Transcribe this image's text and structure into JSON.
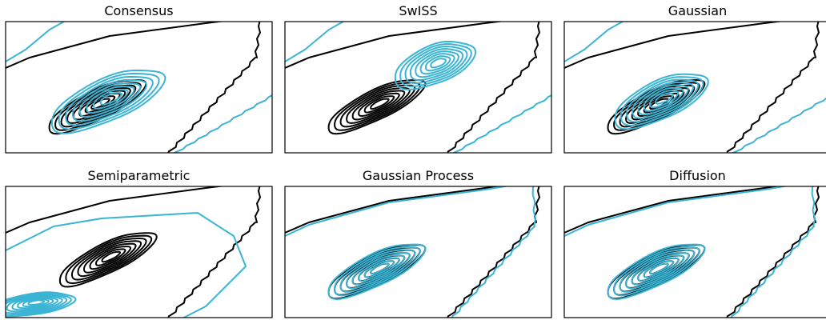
{
  "colors": {
    "reference": "#000000",
    "method": "#3ab4d4"
  },
  "chart_data": [
    {
      "type": "contour",
      "title": "Consensus",
      "levels": 8,
      "reference": {
        "center": [
          0.34,
          0.64
        ],
        "spread": [
          0.2,
          0.07
        ],
        "angle_deg": -26
      },
      "method": {
        "center": [
          0.38,
          0.6
        ],
        "spread": [
          0.23,
          0.1
        ],
        "angle_deg": -24
      },
      "method_outer": "shifted-right"
    },
    {
      "type": "contour",
      "title": "SwISS",
      "levels": 8,
      "reference": {
        "center": [
          0.34,
          0.64
        ],
        "spread": [
          0.2,
          0.07
        ],
        "angle_deg": -26
      },
      "method": {
        "center": [
          0.56,
          0.33
        ],
        "spread": [
          0.16,
          0.09
        ],
        "angle_deg": -22
      },
      "method_outer": "shifted-right"
    },
    {
      "type": "contour",
      "title": "Gaussian",
      "levels": 8,
      "reference": {
        "center": [
          0.34,
          0.64
        ],
        "spread": [
          0.2,
          0.07
        ],
        "angle_deg": -26
      },
      "method": {
        "center": [
          0.36,
          0.6
        ],
        "spread": [
          0.19,
          0.09
        ],
        "angle_deg": -25
      },
      "method_outer": "shifted-right"
    },
    {
      "type": "contour",
      "title": "Semiparametric",
      "levels": 8,
      "reference": {
        "center": [
          0.38,
          0.55
        ],
        "spread": [
          0.2,
          0.07
        ],
        "angle_deg": -26
      },
      "method": {
        "center": [
          0.1,
          0.9
        ],
        "spread": [
          0.16,
          0.05
        ],
        "angle_deg": -8
      },
      "method_outer": "wide-box"
    },
    {
      "type": "contour",
      "title": "Gaussian Process",
      "levels": 8,
      "reference": {
        "center": [
          0.34,
          0.64
        ],
        "spread": [
          0.2,
          0.07
        ],
        "angle_deg": -26
      },
      "method": {
        "center": [
          0.34,
          0.64
        ],
        "spread": [
          0.2,
          0.075
        ],
        "angle_deg": -26
      },
      "method_outer": "overlapping"
    },
    {
      "type": "contour",
      "title": "Diffusion",
      "levels": 8,
      "reference": {
        "center": [
          0.34,
          0.64
        ],
        "spread": [
          0.2,
          0.07
        ],
        "angle_deg": -26
      },
      "method": {
        "center": [
          0.34,
          0.64
        ],
        "spread": [
          0.2,
          0.075
        ],
        "angle_deg": -26
      },
      "method_outer": "overlapping"
    }
  ]
}
